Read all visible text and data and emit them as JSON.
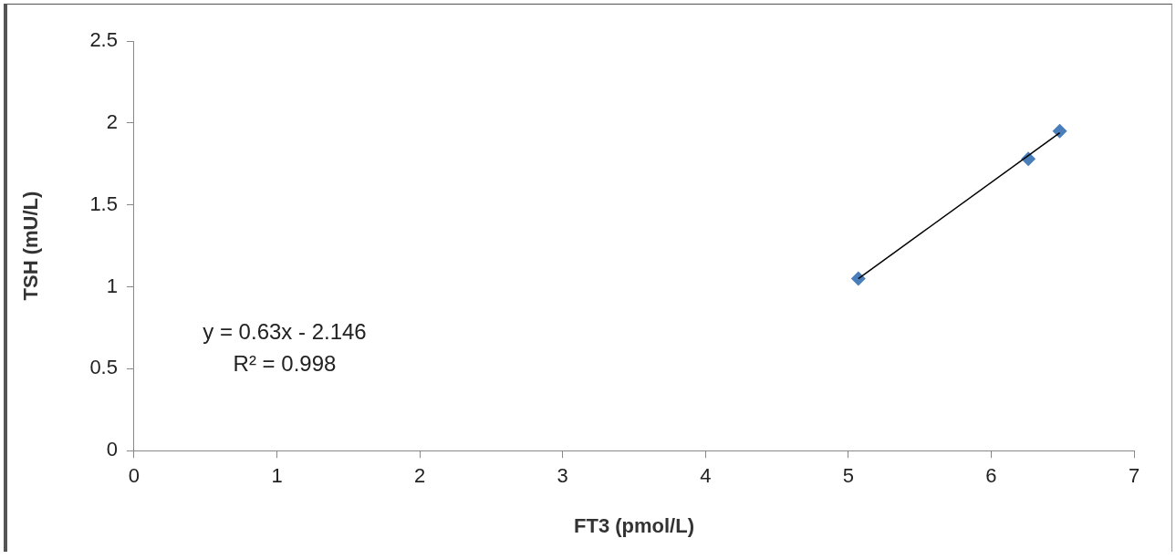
{
  "chart_data": {
    "type": "scatter",
    "xlabel": "FT3 (pmol/L)",
    "ylabel": "TSH (mU/L)",
    "x": [
      5.07,
      6.26,
      6.48
    ],
    "series": [
      {
        "color": "#4a7ebb",
        "values": [
          1.05,
          1.78,
          1.95
        ],
        "marker": "diamond"
      },
      {
        "type": "line",
        "color": "#000000",
        "x": [
          5.07,
          6.48
        ],
        "values": [
          1.05,
          1.94
        ],
        "marker": "none",
        "line_style": "solid"
      }
    ],
    "xlim": [
      0,
      7
    ],
    "xticks": [
      0,
      1,
      2,
      3,
      4,
      5,
      6,
      7
    ],
    "ylim": [
      0,
      2.5
    ],
    "yticks": [
      0,
      0.5,
      1,
      1.5,
      2,
      2.5
    ],
    "annotations": [
      "y = 0.63x - 2.146",
      "R² = 0.998"
    ],
    "grid": false,
    "legend": false
  }
}
